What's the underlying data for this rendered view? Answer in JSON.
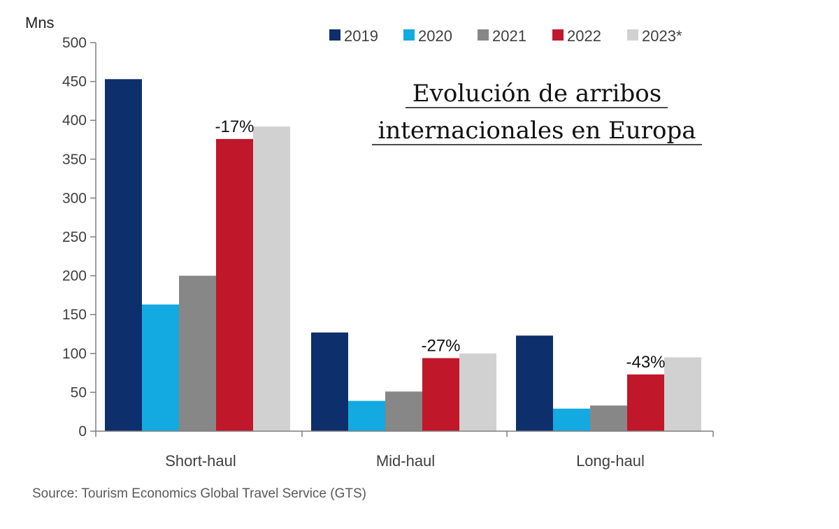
{
  "chart_data": {
    "type": "bar",
    "title": "Evolución de arribos internacionales en Europa",
    "title_lines": [
      "Evolución de arribos",
      "internacionales en Europa"
    ],
    "ylabel": "Mns",
    "xlabel": "",
    "ylim": [
      0,
      500
    ],
    "yticks": [
      0,
      50,
      100,
      150,
      200,
      250,
      300,
      350,
      400,
      450,
      500
    ],
    "categories": [
      "Short-haul",
      "Mid-haul",
      "Long-haul"
    ],
    "series": [
      {
        "name": "2019",
        "color": "#0d2f6b",
        "values": [
          453,
          127,
          123
        ]
      },
      {
        "name": "2020",
        "color": "#13a9e1",
        "values": [
          163,
          39,
          29
        ]
      },
      {
        "name": "2021",
        "color": "#878787",
        "values": [
          200,
          51,
          33
        ]
      },
      {
        "name": "2022",
        "color": "#c0172a",
        "values": [
          376,
          94,
          73
        ]
      },
      {
        "name": "2023*",
        "color": "#d1d1d1",
        "values": [
          392,
          100,
          95
        ]
      }
    ],
    "annotations": [
      {
        "category": "Short-haul",
        "text": "-17%"
      },
      {
        "category": "Mid-haul",
        "text": "-27%"
      },
      {
        "category": "Long-haul",
        "text": "-43%"
      }
    ],
    "legend_position": "top",
    "grid": false,
    "source": "Source: Tourism Economics Global Travel Service (GTS)"
  }
}
